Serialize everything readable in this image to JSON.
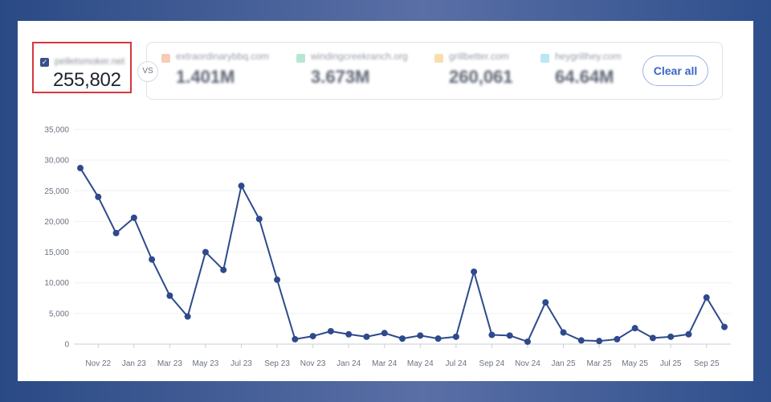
{
  "primary": {
    "domain": "pelletsmoker.net",
    "value": "255,802",
    "checked": "✓"
  },
  "vs_label": "VS",
  "competitors": [
    {
      "domain": "extraordinarybbq.com",
      "value": "1.401M",
      "color": "#f0a27a"
    },
    {
      "domain": "windingcreekranch.org",
      "value": "3.673M",
      "color": "#7fd1ae"
    },
    {
      "domain": "grillbetter.com",
      "value": "260,061",
      "color": "#f4c26a"
    },
    {
      "domain": "heygrillhey.com",
      "value": "64.64M",
      "color": "#7fd3ea"
    }
  ],
  "clear_label": "Clear all",
  "chart_data": {
    "type": "line",
    "series_color": "#2e4a8c",
    "ylim": [
      0,
      35000
    ],
    "yticks": [
      0,
      5000,
      10000,
      15000,
      20000,
      25000,
      30000,
      35000
    ],
    "ytick_labels": [
      "0",
      "5,000",
      "10,000",
      "15,000",
      "20,000",
      "25,000",
      "30,000",
      "35,000"
    ],
    "xtick_labels": [
      "Nov 22",
      "Jan 23",
      "Mar 23",
      "May 23",
      "Jul 23",
      "Sep 23",
      "Nov 23",
      "Jan 24",
      "Mar 24",
      "May 24",
      "Jul 24",
      "Sep 24",
      "Nov 24",
      "Jan 25",
      "Mar 25",
      "May 25",
      "Jul 25",
      "Sep 25"
    ],
    "values": [
      28700,
      24000,
      18100,
      20600,
      13800,
      7900,
      4500,
      15000,
      12100,
      25800,
      20400,
      10500,
      800,
      1300,
      2100,
      1600,
      1200,
      1800,
      900,
      1400,
      900,
      1200,
      11800,
      1500,
      1400,
      400,
      6800,
      1900,
      600,
      500,
      800,
      2600,
      1000,
      1200,
      1600,
      7600,
      2800
    ]
  }
}
